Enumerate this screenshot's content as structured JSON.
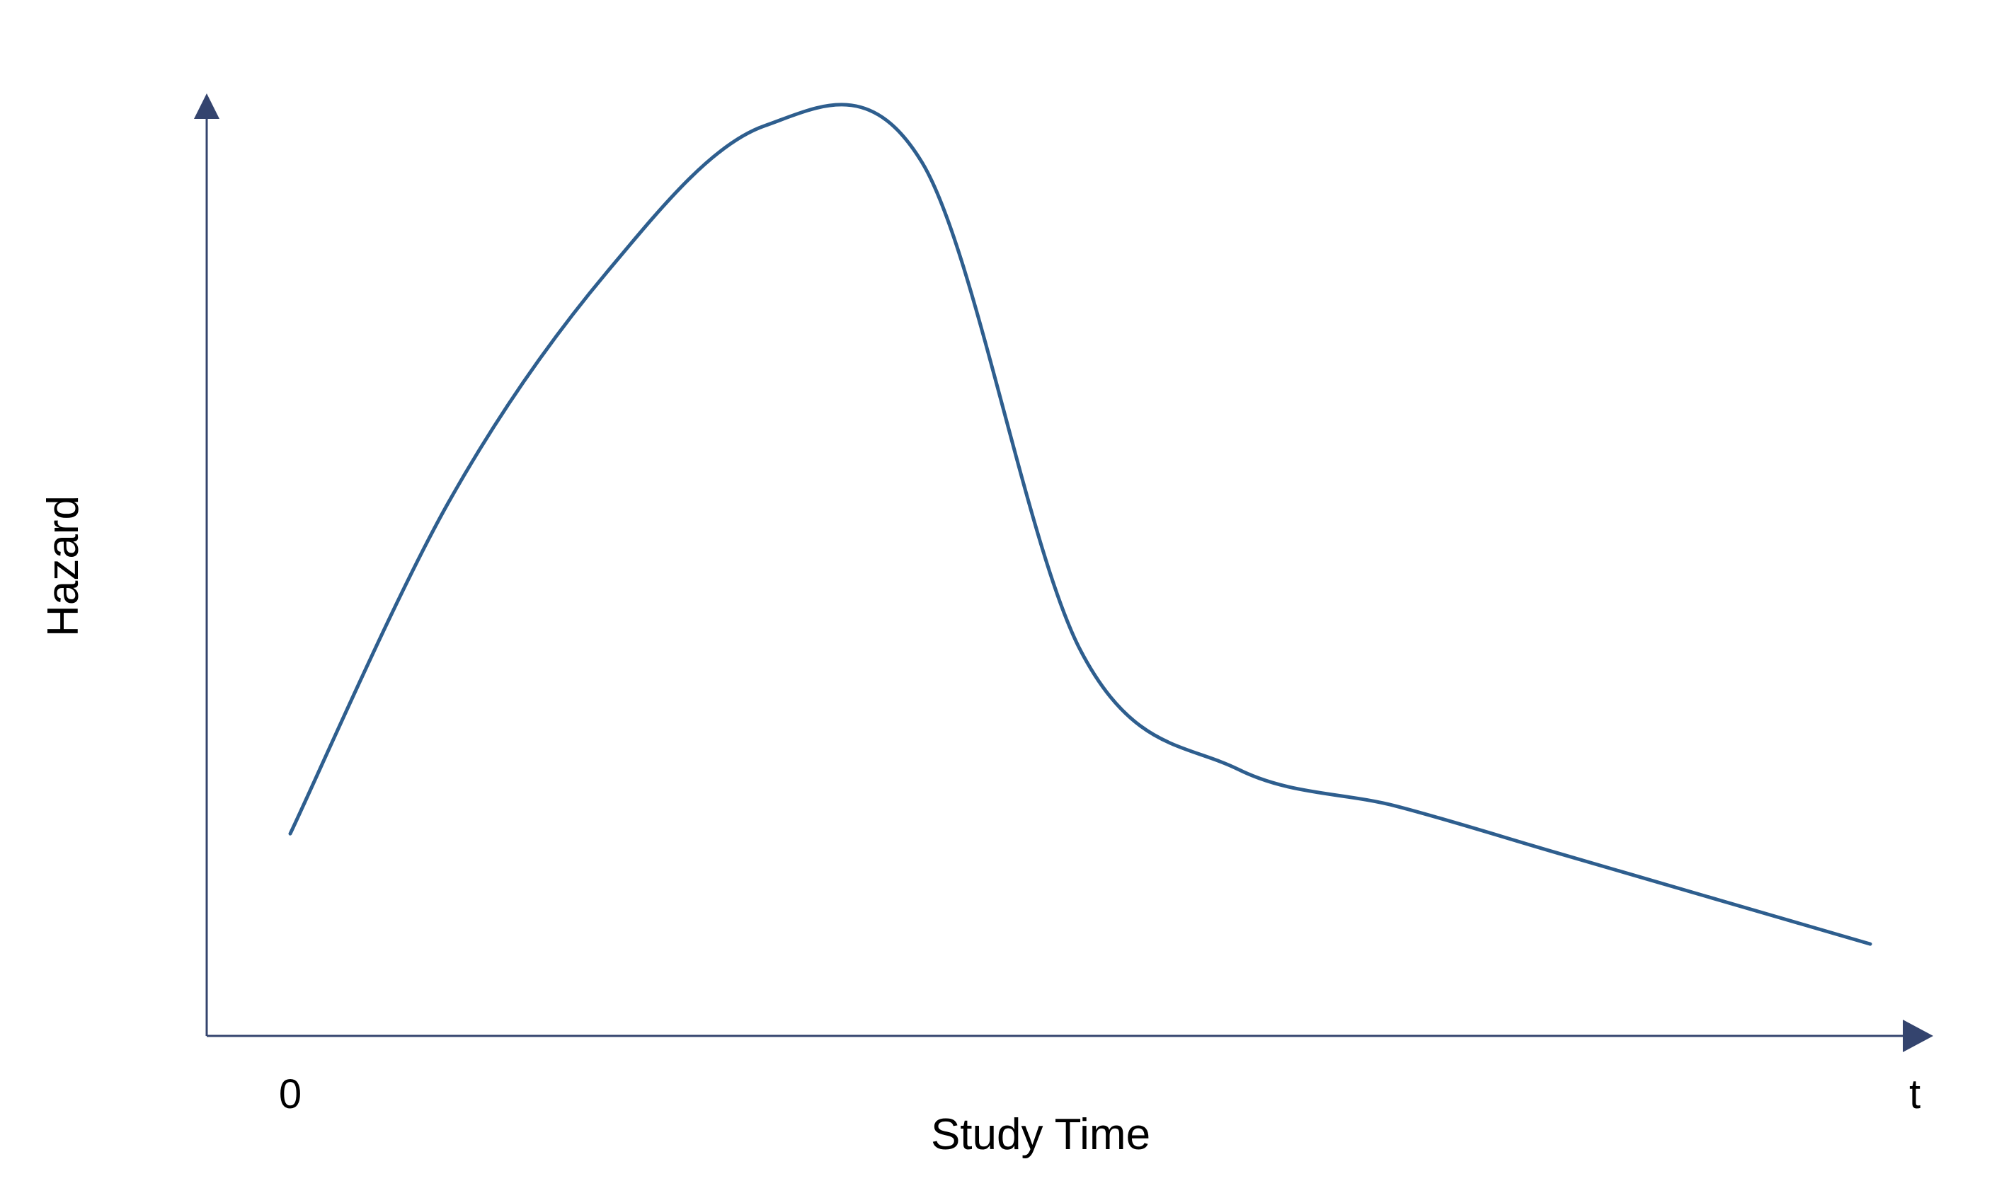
{
  "chart_data": {
    "type": "line",
    "title": "",
    "xlabel": "Study Time",
    "ylabel": "Hazard",
    "x_tick_labels": [
      "0",
      "t"
    ],
    "xlim": [
      0,
      1
    ],
    "ylim": [
      0,
      1
    ],
    "grid": false,
    "legend": "none",
    "series": [
      {
        "x": [
          0,
          0.1,
          0.2,
          0.3,
          0.4,
          0.5,
          0.6,
          0.7,
          0.8,
          0.9,
          1.0
        ],
        "y": [
          0.22,
          0.58,
          0.83,
          0.99,
          0.95,
          0.42,
          0.29,
          0.25,
          0.2,
          0.15,
          0.1
        ]
      }
    ],
    "colors": {
      "axis": "#34446e",
      "line": "#2e5e8e",
      "text": "#000000",
      "background": "#ffffff"
    }
  }
}
